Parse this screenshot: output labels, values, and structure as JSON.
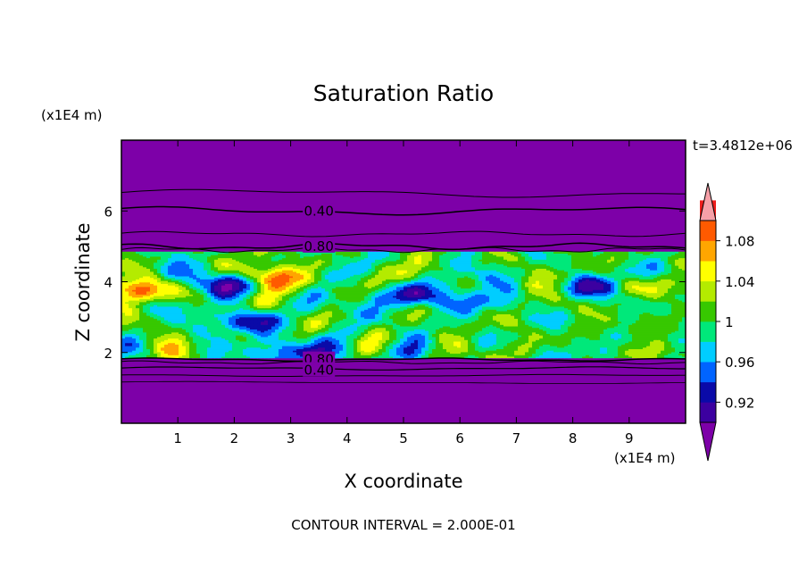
{
  "chart_data": {
    "type": "heatmap",
    "title": "Saturation Ratio",
    "xlabel": "X coordinate",
    "ylabel": "Z coordinate",
    "x_unit": "(x1E4 m)",
    "y_unit": "(x1E4 m)",
    "xlim": [
      0,
      10
    ],
    "ylim": [
      0,
      8
    ],
    "x_ticks": [
      1,
      2,
      3,
      4,
      5,
      6,
      7,
      8,
      9
    ],
    "y_ticks": [
      2,
      4,
      6
    ],
    "time_label": "t=3.4812e+06",
    "footer": "CONTOUR INTERVAL = 2.000E-01",
    "colorbar": {
      "levels": [
        0.9,
        0.92,
        0.94,
        0.96,
        0.98,
        1.0,
        1.02,
        1.04,
        1.06,
        1.08,
        1.1
      ],
      "tick_labels": [
        "0.92",
        "0.96",
        "1",
        "1.04",
        "1.08"
      ],
      "tick_values": [
        0.92,
        0.96,
        1.0,
        1.04,
        1.08
      ],
      "colors": [
        "#7d00a8",
        "#3c00a0",
        "#0a0aa8",
        "#0064ff",
        "#00cdff",
        "#00e87a",
        "#37c800",
        "#b4eb00",
        "#ffff00",
        "#ffa600",
        "#ff5a00",
        "#ee1c1c",
        "#f6a0a8"
      ]
    },
    "contour_lines": [
      {
        "label": "0.40",
        "z": 6.0
      },
      {
        "label": "0.80",
        "z": 5.0
      },
      {
        "label": "0.80",
        "z": 1.8
      },
      {
        "label": "0.40",
        "z": 1.5
      }
    ],
    "features": [
      {
        "x": 0.35,
        "z": 3.75,
        "value": 1.1
      },
      {
        "x": 1.9,
        "z": 3.95,
        "value": 0.9
      },
      {
        "x": 2.8,
        "z": 4.1,
        "value": 1.1
      },
      {
        "x": 2.2,
        "z": 2.9,
        "value": 0.92
      },
      {
        "x": 3.4,
        "z": 2.0,
        "value": 0.9
      },
      {
        "x": 5.1,
        "z": 3.6,
        "value": 0.91
      },
      {
        "x": 8.4,
        "z": 3.9,
        "value": 0.9
      },
      {
        "x": 9.1,
        "z": 3.9,
        "value": 1.07
      },
      {
        "x": 6.1,
        "z": 3.5,
        "value": 0.96
      }
    ]
  }
}
